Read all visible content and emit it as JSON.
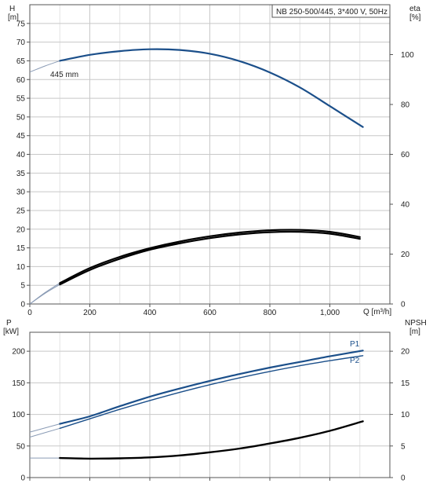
{
  "chart_data": [
    {
      "type": "line",
      "title": "NB 250-500/445, 3*400 V, 50Hz",
      "ylabel_left": "H",
      "ylabel_left_unit": "[m]",
      "ylabel_right": "eta",
      "ylabel_right_unit": "[%]",
      "xlabel": "Q [m³/h]",
      "xlim": [
        0,
        1200
      ],
      "ylim_left": [
        0,
        80
      ],
      "ylim_right": [
        0,
        120
      ],
      "grid": true,
      "x_ticks": [
        0,
        200,
        400,
        600,
        800,
        1000
      ],
      "x_tick_labels": [
        "0",
        "200",
        "400",
        "600",
        "800",
        "1,000"
      ],
      "y_left_ticks": [
        0,
        5,
        10,
        15,
        20,
        25,
        30,
        35,
        40,
        45,
        50,
        55,
        60,
        65,
        70,
        75
      ],
      "y_left_tick_labels": [
        "0",
        "5",
        "10",
        "15",
        "20",
        "25",
        "30",
        "35",
        "40",
        "45",
        "50",
        "55",
        "60",
        "65",
        "70",
        "75"
      ],
      "y_right_ticks": [
        0,
        20,
        40,
        60,
        80,
        100
      ],
      "y_right_tick_labels": [
        "0",
        "20",
        "40",
        "60",
        "80",
        "100"
      ],
      "annotation": "445 mm",
      "colors": {
        "head": "#1b4f8a",
        "eta": "#000000",
        "extension": "#8a9bb5",
        "grid": "#c8c8c8"
      },
      "series": [
        {
          "axis": "left",
          "color": "#1b4f8a",
          "x": [
            100,
            200,
            300,
            400,
            500,
            600,
            700,
            800,
            900,
            1000,
            1110
          ],
          "y": [
            65.0,
            66.6,
            67.6,
            68.1,
            67.9,
            66.9,
            64.9,
            61.9,
            57.9,
            52.9,
            47.3
          ],
          "x_ext": [
            0,
            50,
            100
          ],
          "y_ext": [
            62.0,
            63.6,
            65.0
          ]
        },
        {
          "axis": "left",
          "color": "#000000",
          "x": [
            100,
            200,
            300,
            400,
            500,
            600,
            700,
            800,
            900,
            1000,
            1100
          ],
          "y": [
            5.6,
            9.6,
            12.6,
            14.9,
            16.7,
            18.1,
            19.1,
            19.7,
            19.8,
            19.3,
            17.9
          ],
          "x_ext": [
            0,
            50,
            100
          ],
          "y_ext": [
            0,
            3.0,
            5.6
          ]
        },
        {
          "axis": "left",
          "color": "#000000",
          "x": [
            100,
            200,
            300,
            400,
            500,
            600,
            700,
            800,
            900,
            1000,
            1100
          ],
          "y": [
            5.2,
            9.1,
            12.1,
            14.5,
            16.2,
            17.6,
            18.6,
            19.2,
            19.3,
            18.8,
            17.4
          ],
          "x_ext": [
            0,
            50,
            100
          ],
          "y_ext": [
            0,
            2.8,
            5.2
          ]
        }
      ]
    },
    {
      "type": "line",
      "ylabel_left": "P",
      "ylabel_left_unit": "[kW]",
      "ylabel_right": "NPSH",
      "ylabel_right_unit": "[m]",
      "xlim": [
        0,
        1200
      ],
      "ylim_left": [
        0,
        230
      ],
      "ylim_right": [
        0,
        23
      ],
      "grid": true,
      "y_left_ticks": [
        0,
        50,
        100,
        150,
        200
      ],
      "y_left_tick_labels": [
        "0",
        "50",
        "100",
        "150",
        "200"
      ],
      "y_right_ticks": [
        0,
        5,
        10,
        15,
        20
      ],
      "y_right_tick_labels": [
        "0",
        "5",
        "10",
        "15",
        "20"
      ],
      "colors": {
        "p1": "#1b4f8a",
        "p2": "#1b4f8a",
        "npsh": "#000000",
        "extension": "#8a9bb5"
      },
      "series": [
        {
          "name": "P1",
          "axis": "left",
          "color": "#1b4f8a",
          "x": [
            100,
            200,
            300,
            400,
            500,
            600,
            700,
            800,
            900,
            1000,
            1110
          ],
          "y": [
            85,
            97,
            113,
            128,
            141,
            153,
            164,
            174,
            183,
            192,
            201
          ],
          "x_ext": [
            0,
            100
          ],
          "y_ext": [
            72,
            85
          ]
        },
        {
          "name": "P2",
          "axis": "left",
          "color": "#1b4f8a",
          "x": [
            100,
            200,
            300,
            400,
            500,
            600,
            700,
            800,
            900,
            1000,
            1110
          ],
          "y": [
            78,
            93,
            108,
            122,
            135,
            147,
            158,
            168,
            177,
            185,
            193
          ],
          "x_ext": [
            0,
            100
          ],
          "y_ext": [
            64,
            78
          ]
        },
        {
          "axis": "right",
          "color": "#000000",
          "x": [
            100,
            200,
            300,
            400,
            500,
            600,
            700,
            800,
            900,
            1000,
            1110
          ],
          "y": [
            3.1,
            3.0,
            3.05,
            3.2,
            3.5,
            4.0,
            4.6,
            5.4,
            6.3,
            7.4,
            8.9
          ],
          "x_ext": [
            0,
            100
          ],
          "y_ext": [
            3.1,
            3.1
          ]
        }
      ]
    }
  ]
}
